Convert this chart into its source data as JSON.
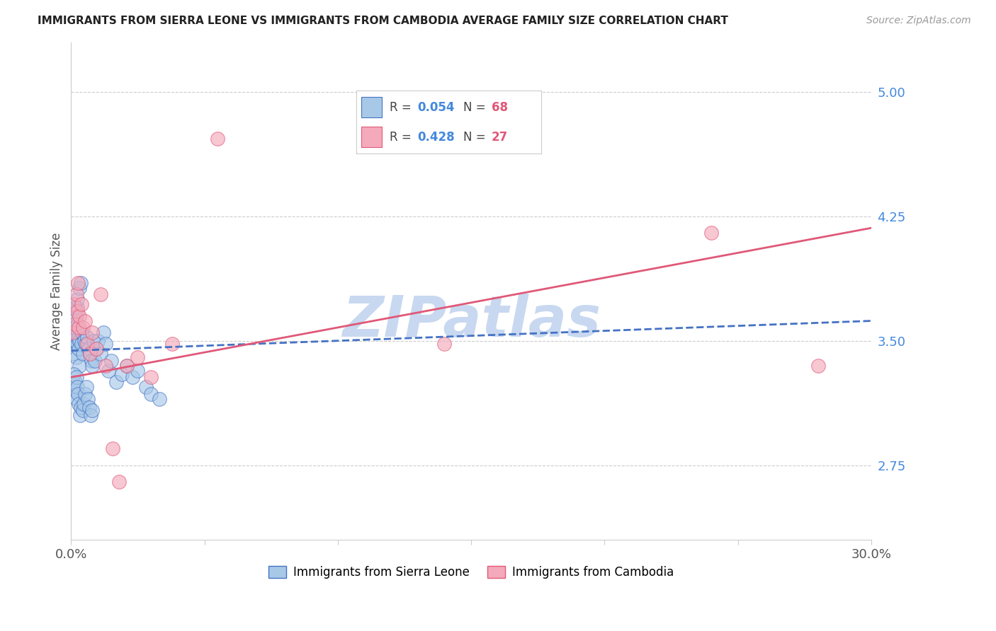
{
  "title": "IMMIGRANTS FROM SIERRA LEONE VS IMMIGRANTS FROM CAMBODIA AVERAGE FAMILY SIZE CORRELATION CHART",
  "source": "Source: ZipAtlas.com",
  "ylabel": "Average Family Size",
  "xmin": 0.0,
  "xmax": 30.0,
  "ymin": 2.3,
  "ymax": 5.3,
  "yticks": [
    2.75,
    3.5,
    4.25,
    5.0
  ],
  "series1_label": "Immigrants from Sierra Leone",
  "series2_label": "Immigrants from Cambodia",
  "series1_R": 0.054,
  "series1_N": 68,
  "series2_R": 0.428,
  "series2_N": 27,
  "series1_color": "#A8C8E8",
  "series2_color": "#F4AABB",
  "trend1_color": "#4472C4",
  "trend2_color": "#E05878",
  "watermark": "ZIPatlas",
  "watermark_color": "#C8D8F0",
  "series1_x": [
    0.05,
    0.08,
    0.1,
    0.12,
    0.13,
    0.15,
    0.15,
    0.17,
    0.18,
    0.2,
    0.2,
    0.22,
    0.22,
    0.23,
    0.25,
    0.25,
    0.27,
    0.28,
    0.3,
    0.3,
    0.32,
    0.35,
    0.38,
    0.4,
    0.42,
    0.45,
    0.5,
    0.55,
    0.6,
    0.65,
    0.7,
    0.75,
    0.8,
    0.85,
    0.9,
    0.95,
    1.0,
    1.1,
    1.2,
    1.3,
    1.4,
    1.5,
    1.7,
    1.9,
    2.1,
    2.3,
    2.5,
    2.8,
    3.0,
    3.3,
    0.1,
    0.14,
    0.16,
    0.19,
    0.21,
    0.24,
    0.26,
    0.29,
    0.33,
    0.37,
    0.43,
    0.48,
    0.53,
    0.58,
    0.63,
    0.68,
    0.73,
    0.78
  ],
  "series1_y": [
    3.5,
    3.62,
    3.48,
    3.55,
    3.42,
    3.7,
    3.58,
    3.5,
    3.65,
    3.52,
    3.4,
    3.7,
    3.75,
    3.48,
    3.6,
    3.55,
    3.52,
    3.45,
    3.5,
    3.35,
    3.82,
    3.85,
    3.55,
    3.48,
    3.55,
    3.42,
    3.5,
    3.48,
    3.52,
    3.45,
    3.42,
    3.38,
    3.35,
    3.5,
    3.38,
    3.45,
    3.5,
    3.42,
    3.55,
    3.48,
    3.32,
    3.38,
    3.25,
    3.3,
    3.35,
    3.28,
    3.32,
    3.22,
    3.18,
    3.15,
    3.3,
    3.2,
    3.25,
    3.28,
    3.15,
    3.22,
    3.18,
    3.12,
    3.05,
    3.1,
    3.08,
    3.12,
    3.18,
    3.22,
    3.15,
    3.1,
    3.05,
    3.08
  ],
  "series2_x": [
    0.05,
    0.1,
    0.15,
    0.2,
    0.22,
    0.25,
    0.28,
    0.32,
    0.38,
    0.45,
    0.52,
    0.6,
    0.7,
    0.8,
    0.95,
    1.1,
    1.3,
    1.55,
    1.8,
    2.1,
    2.5,
    3.0,
    3.8,
    5.5,
    14.0,
    24.0,
    28.0
  ],
  "series2_y": [
    3.55,
    3.72,
    3.6,
    3.78,
    3.68,
    3.85,
    3.58,
    3.65,
    3.72,
    3.58,
    3.62,
    3.48,
    3.42,
    3.55,
    3.45,
    3.78,
    3.35,
    2.85,
    2.65,
    3.35,
    3.4,
    3.28,
    3.48,
    4.72,
    3.48,
    4.15,
    3.35
  ],
  "trend1_y_start": 3.44,
  "trend1_y_end": 3.62,
  "trend2_y_start": 3.28,
  "trend2_y_end": 4.18
}
